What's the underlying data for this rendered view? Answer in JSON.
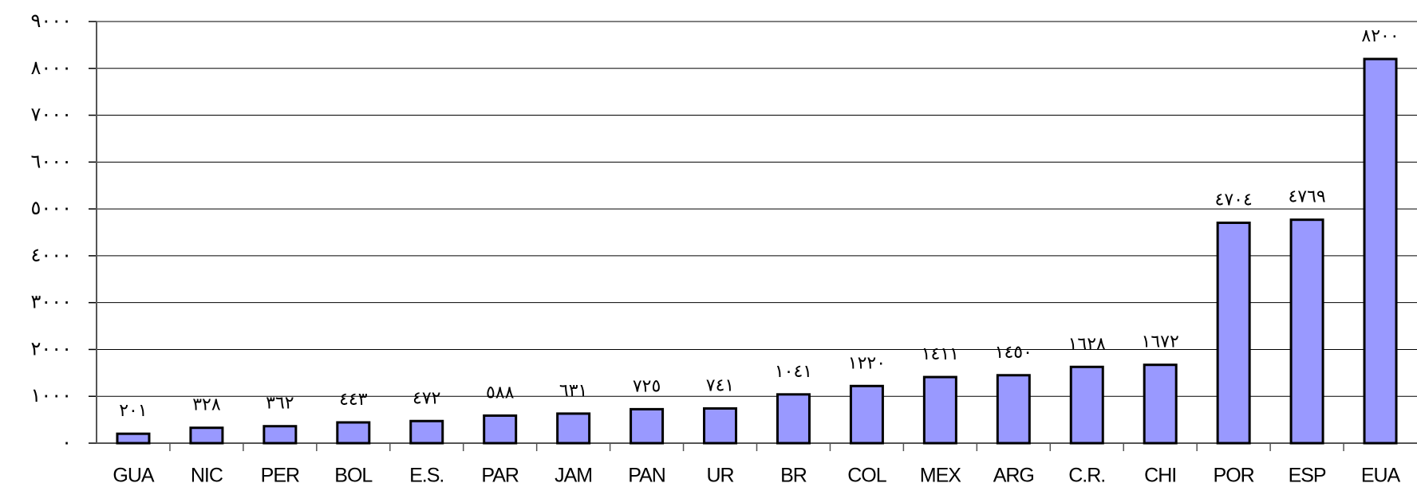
{
  "chart_data": {
    "type": "bar",
    "categories": [
      "GUA",
      "NIC",
      "PER",
      "BOL",
      "E.S.",
      "PAR",
      "JAM",
      "PAN",
      "UR",
      "BR",
      "COL",
      "MEX",
      "ARG",
      "C.R.",
      "CHI",
      "POR",
      "ESP",
      "EUA"
    ],
    "values": [
      201,
      328,
      362,
      443,
      472,
      588,
      631,
      725,
      741,
      1041,
      1220,
      1411,
      1450,
      1628,
      1672,
      4704,
      4769,
      8200
    ],
    "value_labels": [
      "٢٠١",
      "٣٢٨",
      "٣٦٢",
      "٤٤٣",
      "٤٧٢",
      "٥٨٨",
      "٦٣١",
      "٧٢٥",
      "٧٤١",
      "١٠٤١",
      "١٢٢٠",
      "١٤١١",
      "١٤٥٠",
      "١٦٢٨",
      "١٦٧٢",
      "٤٧٠٤",
      "٤٧٦٩",
      "٨٢٠٠"
    ],
    "color": "#9999ff",
    "ylim": [
      0,
      9000
    ],
    "yticks": [
      {
        "value": 0,
        "label": "٠"
      },
      {
        "value": 1000,
        "label": "١٠٠٠"
      },
      {
        "value": 2000,
        "label": "٢٠٠٠"
      },
      {
        "value": 3000,
        "label": "٣٠٠٠"
      },
      {
        "value": 4000,
        "label": "٤٠٠٠"
      },
      {
        "value": 5000,
        "label": "٥٠٠٠"
      },
      {
        "value": 6000,
        "label": "٦٠٠٠"
      },
      {
        "value": 7000,
        "label": "٧٠٠٠"
      },
      {
        "value": 8000,
        "label": "٨٠٠٠"
      },
      {
        "value": 9000,
        "label": "٩٠٠٠"
      }
    ],
    "grid": true
  }
}
